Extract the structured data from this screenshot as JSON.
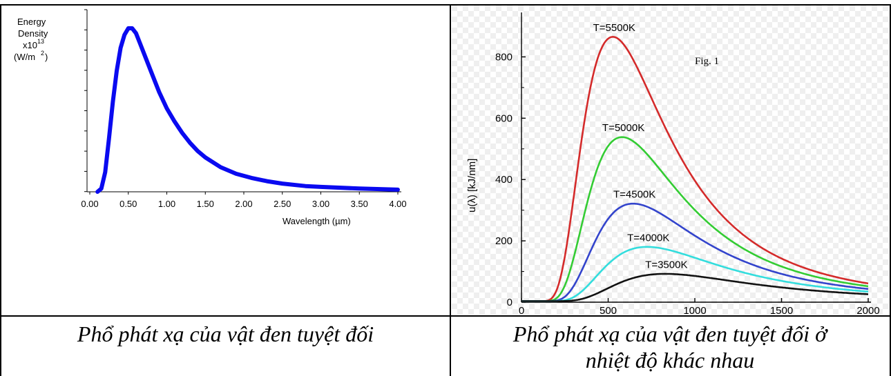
{
  "captions": {
    "left": "Phổ phát xạ của vật đen tuyệt đối",
    "right_line1": "Phổ phát xạ của vật đen tuyệt đối ở",
    "right_line2": "nhiệt độ khác nhau"
  },
  "colors": {
    "left_curve": "#0a0af0",
    "right_bg_check": "#eeeeee",
    "T5500": "#d42a2a",
    "T5000": "#33cc33",
    "T4500": "#3344cc",
    "T4000": "#33dddd",
    "T3500": "#111111"
  },
  "chart_data": [
    {
      "type": "line",
      "ylabel_lines": [
        "Energy",
        "Density",
        "x10",
        "13",
        "(W/m",
        "2",
        ")"
      ],
      "xlabel": "Wavelength (µm)",
      "x_ticks": [
        "0.00",
        "0.50",
        "1.00",
        "1.50",
        "2.00",
        "2.50",
        "3.00",
        "3.50",
        "4.00"
      ],
      "xlim": [
        0,
        4.0
      ],
      "ylim": [
        0,
        1.0
      ],
      "grid": false,
      "series": [
        {
          "x": [
            0.1,
            0.15,
            0.2,
            0.25,
            0.3,
            0.35,
            0.4,
            0.45,
            0.5,
            0.55,
            0.6,
            0.65,
            0.7,
            0.8,
            0.9,
            1.0,
            1.1,
            1.2,
            1.3,
            1.4,
            1.5,
            1.7,
            1.9,
            2.1,
            2.3,
            2.5,
            2.8,
            3.0,
            3.5,
            4.0
          ],
          "y": [
            0.0,
            0.02,
            0.12,
            0.33,
            0.55,
            0.74,
            0.88,
            0.96,
            1.0,
            1.0,
            0.97,
            0.91,
            0.85,
            0.73,
            0.61,
            0.51,
            0.43,
            0.36,
            0.3,
            0.25,
            0.21,
            0.15,
            0.11,
            0.085,
            0.065,
            0.05,
            0.035,
            0.03,
            0.02,
            0.013
          ]
        }
      ]
    },
    {
      "type": "line",
      "ylabel": "u(λ) [kJ/nm]",
      "annotation": "Fig. 1",
      "x_ticks": [
        "0",
        "500",
        "1000",
        "1500",
        "2000"
      ],
      "y_ticks": [
        "0",
        "200",
        "400",
        "600",
        "800"
      ],
      "xlim": [
        0,
        2000
      ],
      "ylim": [
        0,
        900
      ],
      "grid": false,
      "series": [
        {
          "name": "T=5500K",
          "peak": [
            527,
            862
          ]
        },
        {
          "name": "T=5000K",
          "peak": [
            580,
            535
          ]
        },
        {
          "name": "T=4500K",
          "peak": [
            644,
            318
          ]
        },
        {
          "name": "T=4000K",
          "peak": [
            724,
            177
          ]
        },
        {
          "name": "T=3500K",
          "peak": [
            828,
            89
          ]
        }
      ]
    }
  ]
}
